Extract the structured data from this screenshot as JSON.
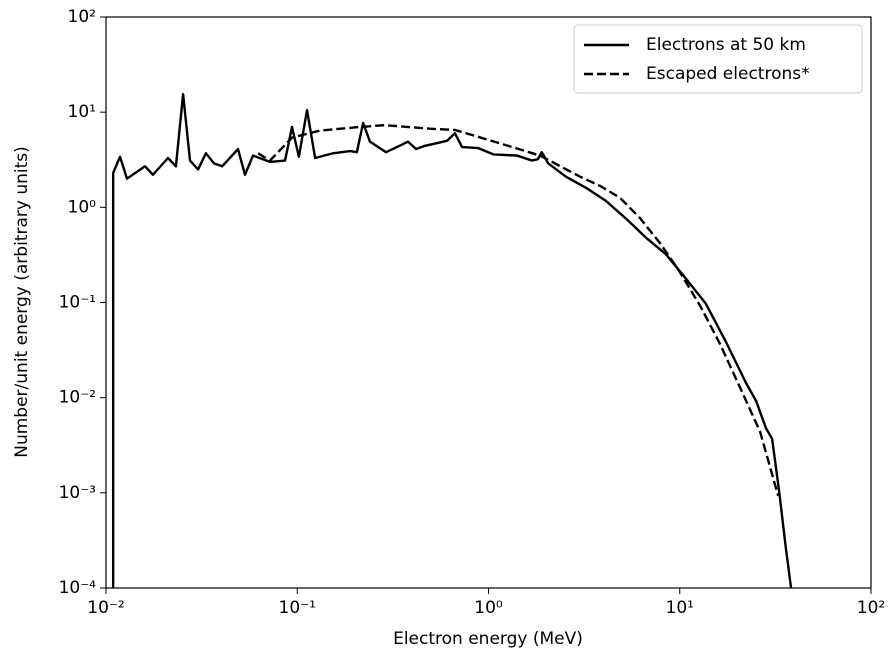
{
  "chart_data": {
    "type": "line",
    "xlabel": "Electron energy (MeV)",
    "ylabel": "Number/unit energy (arbitrary units)",
    "xscale": "log",
    "yscale": "log",
    "xlim": [
      0.01,
      100
    ],
    "ylim": [
      0.0001,
      100
    ],
    "xticks": [
      {
        "value": 0.01,
        "label": "10⁻²"
      },
      {
        "value": 0.1,
        "label": "10⁻¹"
      },
      {
        "value": 1,
        "label": "10⁰"
      },
      {
        "value": 10,
        "label": "10¹"
      },
      {
        "value": 100,
        "label": "10²"
      }
    ],
    "yticks": [
      {
        "value": 0.0001,
        "label": "10⁻⁴"
      },
      {
        "value": 0.001,
        "label": "10⁻³"
      },
      {
        "value": 0.01,
        "label": "10⁻²"
      },
      {
        "value": 0.1,
        "label": "10⁻¹"
      },
      {
        "value": 1,
        "label": "10⁰"
      },
      {
        "value": 10,
        "label": "10¹"
      },
      {
        "value": 100,
        "label": "10²"
      }
    ],
    "legend": "upper right",
    "series": [
      {
        "name": "Electrons at 50 km",
        "color": "#000000",
        "linestyle": "solid",
        "x": [
          0.0109,
          0.0109,
          0.01184,
          0.01288,
          0.016,
          0.0176,
          0.0211,
          0.0232,
          0.0253,
          0.0275,
          0.0303,
          0.0333,
          0.0367,
          0.0405,
          0.049,
          0.0533,
          0.0587,
          0.072,
          0.0863,
          0.0939,
          0.102,
          0.1125,
          0.124,
          0.154,
          0.189,
          0.205,
          0.221,
          0.24,
          0.291,
          0.348,
          0.379,
          0.418,
          0.46,
          0.607,
          0.668,
          0.727,
          0.881,
          1.06,
          1.41,
          1.69,
          1.81,
          1.9,
          2.05,
          2.54,
          3.24,
          4.11,
          5.24,
          6.66,
          8.48,
          10.8,
          13.7,
          17.5,
          22.2,
          25.1,
          28.2,
          30.4,
          33.0,
          35.9,
          38.2
        ],
        "values": [
          0.0001,
          2.3,
          3.4,
          2.0,
          2.7,
          2.2,
          3.3,
          2.7,
          15.5,
          3.1,
          2.5,
          3.7,
          2.9,
          2.7,
          4.1,
          2.2,
          3.5,
          3.0,
          3.1,
          7.0,
          3.4,
          10.5,
          3.3,
          3.7,
          3.9,
          3.8,
          7.7,
          4.9,
          3.8,
          4.5,
          4.9,
          4.1,
          4.4,
          5.0,
          6.0,
          4.3,
          4.2,
          3.6,
          3.5,
          3.1,
          3.2,
          3.8,
          2.9,
          2.1,
          1.6,
          1.17,
          0.76,
          0.48,
          0.32,
          0.177,
          0.097,
          0.038,
          0.0143,
          0.0092,
          0.0048,
          0.0037,
          0.00108,
          0.00026,
          0.0001
        ]
      },
      {
        "name": "Escaped electrons*",
        "color": "#000000",
        "linestyle": "dashed",
        "x": [
          0.0624,
          0.072,
          0.0939,
          0.131,
          0.213,
          0.288,
          0.494,
          0.668,
          1.15,
          1.86,
          3.01,
          3.83,
          4.87,
          6.2,
          7.89,
          10.0,
          12.8,
          16.2,
          20.7,
          26.3,
          32.7
        ],
        "values": [
          3.7,
          3.1,
          5.4,
          6.4,
          7.0,
          7.3,
          6.7,
          6.5,
          4.7,
          3.5,
          2.1,
          1.68,
          1.26,
          0.77,
          0.42,
          0.21,
          0.092,
          0.037,
          0.0127,
          0.0044,
          0.00093
        ]
      }
    ]
  }
}
